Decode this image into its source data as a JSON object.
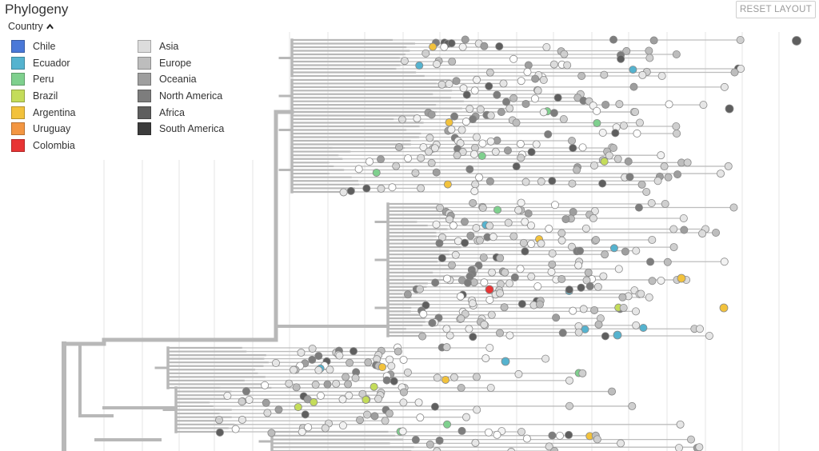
{
  "panel": {
    "title": "Phylogeny"
  },
  "controls": {
    "reset_label": "RESET LAYOUT"
  },
  "legend": {
    "toggle_label": "Country",
    "toggle_icon": "chevron-up-icon",
    "countries": [
      {
        "label": "Chile",
        "color": "#4a78d8"
      },
      {
        "label": "Ecuador",
        "color": "#55b3cf"
      },
      {
        "label": "Peru",
        "color": "#7fd08e"
      },
      {
        "label": "Brazil",
        "color": "#c4dc5a"
      },
      {
        "label": "Argentina",
        "color": "#f2c23c"
      },
      {
        "label": "Uruguay",
        "color": "#f39642"
      },
      {
        "label": "Colombia",
        "color": "#e83434"
      }
    ],
    "regions": [
      {
        "label": "Asia",
        "color": "#dcdcdc"
      },
      {
        "label": "Europe",
        "color": "#bdbdbd"
      },
      {
        "label": "Oceania",
        "color": "#9e9e9e"
      },
      {
        "label": "North America",
        "color": "#7d7d7d"
      },
      {
        "label": "Africa",
        "color": "#5e5e5e"
      },
      {
        "label": "South America",
        "color": "#3c3c3c"
      }
    ]
  }
}
